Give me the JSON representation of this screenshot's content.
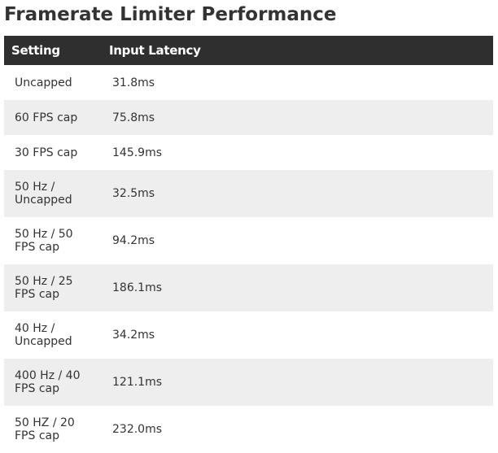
{
  "title": "Framerate Limiter Performance",
  "chart_data": {
    "type": "table",
    "columns": [
      "Setting",
      "Input Latency"
    ],
    "rows": [
      {
        "setting": "Uncapped",
        "latency": "31.8ms"
      },
      {
        "setting": "60 FPS cap",
        "latency": "75.8ms"
      },
      {
        "setting": "30 FPS cap",
        "latency": "145.9ms"
      },
      {
        "setting": "50 Hz / Uncapped",
        "latency": "32.5ms"
      },
      {
        "setting": "50 Hz / 50 FPS cap",
        "latency": "94.2ms"
      },
      {
        "setting": "50 Hz / 25 FPS cap",
        "latency": "186.1ms"
      },
      {
        "setting": "40 Hz / Uncapped",
        "latency": "34.2ms"
      },
      {
        "setting": "400 Hz / 40 FPS cap",
        "latency": "121.1ms"
      },
      {
        "setting": "50 HZ / 20 FPS cap",
        "latency": "232.0ms"
      }
    ]
  },
  "colors": {
    "header_bg": "#2f2f2f",
    "stripe": "#eeeeee",
    "text": "#333333"
  }
}
